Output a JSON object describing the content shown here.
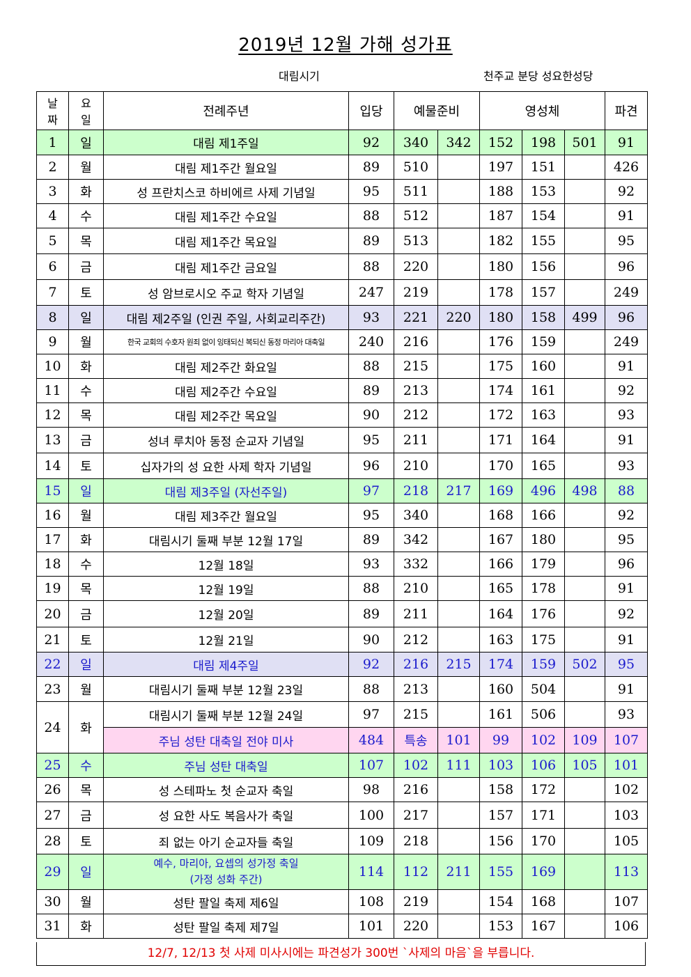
{
  "document": {
    "title": "2019년 12월 가해 성가표",
    "season": "대림시기",
    "parish": "천주교 분당 성요한성당",
    "footer_note": "12/7, 12/13  첫 사제 미사시에는  파견성가 300번 `사제의 마음`을 부릅니다."
  },
  "header": {
    "day_l1": "날",
    "day_l2": "짜",
    "weekday_l1": "요",
    "weekday_l2": "일",
    "liturgy": "전례주년",
    "entrance": "입당",
    "offertory": "예물준비",
    "communion": "영성체",
    "recessional": "파견"
  },
  "colors": {
    "green": "#ccffcc",
    "lavender": "#e0e0f4",
    "pink": "#ffd6f0",
    "blue_text": "#1a1acc",
    "red_text": "#e00000"
  },
  "rows": [
    {
      "day": "1",
      "weekday": "일",
      "liturgy": "대림 제1주일",
      "entrance": "92",
      "offertory1": "340",
      "offertory2": "342",
      "communion1": "152",
      "communion2": "198",
      "communion3": "501",
      "recessional": "91"
    },
    {
      "day": "2",
      "weekday": "월",
      "liturgy": "대림 제1주간 월요일",
      "entrance": "89",
      "offertory1": "510",
      "offertory2": "",
      "communion1": "197",
      "communion2": "151",
      "communion3": "",
      "recessional": "426"
    },
    {
      "day": "3",
      "weekday": "화",
      "liturgy": "성 프란치스코 하비에르 사제 기념일",
      "entrance": "95",
      "offertory1": "511",
      "offertory2": "",
      "communion1": "188",
      "communion2": "153",
      "communion3": "",
      "recessional": "92"
    },
    {
      "day": "4",
      "weekday": "수",
      "liturgy": "대림 제1주간 수요일",
      "entrance": "88",
      "offertory1": "512",
      "offertory2": "",
      "communion1": "187",
      "communion2": "154",
      "communion3": "",
      "recessional": "91"
    },
    {
      "day": "5",
      "weekday": "목",
      "liturgy": "대림 제1주간 목요일",
      "entrance": "89",
      "offertory1": "513",
      "offertory2": "",
      "communion1": "182",
      "communion2": "155",
      "communion3": "",
      "recessional": "95"
    },
    {
      "day": "6",
      "weekday": "금",
      "liturgy": "대림 제1주간 금요일",
      "entrance": "88",
      "offertory1": "220",
      "offertory2": "",
      "communion1": "180",
      "communion2": "156",
      "communion3": "",
      "recessional": "96"
    },
    {
      "day": "7",
      "weekday": "토",
      "liturgy": "성 암브로시오 주교 학자 기념일",
      "entrance": "247",
      "offertory1": "219",
      "offertory2": "",
      "communion1": "178",
      "communion2": "157",
      "communion3": "",
      "recessional": "249"
    },
    {
      "day": "8",
      "weekday": "일",
      "liturgy": "대림 제2주일 (인권 주일, 사회교리주간)",
      "entrance": "93",
      "offertory1": "221",
      "offertory2": "220",
      "communion1": "180",
      "communion2": "158",
      "communion3": "499",
      "recessional": "96"
    },
    {
      "day": "9",
      "weekday": "월",
      "liturgy": "한국 교회의 수호자 원죄 없이 잉태되신 복되신 동정 마리아 대축일",
      "entrance": "240",
      "offertory1": "216",
      "offertory2": "",
      "communion1": "176",
      "communion2": "159",
      "communion3": "",
      "recessional": "249"
    },
    {
      "day": "10",
      "weekday": "화",
      "liturgy": "대림 제2주간 화요일",
      "entrance": "88",
      "offertory1": "215",
      "offertory2": "",
      "communion1": "175",
      "communion2": "160",
      "communion3": "",
      "recessional": "91"
    },
    {
      "day": "11",
      "weekday": "수",
      "liturgy": "대림 제2주간 수요일",
      "entrance": "89",
      "offertory1": "213",
      "offertory2": "",
      "communion1": "174",
      "communion2": "161",
      "communion3": "",
      "recessional": "92"
    },
    {
      "day": "12",
      "weekday": "목",
      "liturgy": "대림 제2주간 목요일",
      "entrance": "90",
      "offertory1": "212",
      "offertory2": "",
      "communion1": "172",
      "communion2": "163",
      "communion3": "",
      "recessional": "93"
    },
    {
      "day": "13",
      "weekday": "금",
      "liturgy": "성녀 루치아 동정 순교자 기념일",
      "entrance": "95",
      "offertory1": "211",
      "offertory2": "",
      "communion1": "171",
      "communion2": "164",
      "communion3": "",
      "recessional": "91"
    },
    {
      "day": "14",
      "weekday": "토",
      "liturgy": "십자가의 성 요한 사제 학자 기념일",
      "entrance": "96",
      "offertory1": "210",
      "offertory2": "",
      "communion1": "170",
      "communion2": "165",
      "communion3": "",
      "recessional": "93"
    },
    {
      "day": "15",
      "weekday": "일",
      "liturgy": "대림 제3주일 (자선주일)",
      "entrance": "97",
      "offertory1": "218",
      "offertory2": "217",
      "communion1": "169",
      "communion2": "496",
      "communion3": "498",
      "recessional": "88"
    },
    {
      "day": "16",
      "weekday": "월",
      "liturgy": "대림 제3주간 월요일",
      "entrance": "95",
      "offertory1": "340",
      "offertory2": "",
      "communion1": "168",
      "communion2": "166",
      "communion3": "",
      "recessional": "92"
    },
    {
      "day": "17",
      "weekday": "화",
      "liturgy": "대림시기 둘째 부분 12월 17일",
      "entrance": "89",
      "offertory1": "342",
      "offertory2": "",
      "communion1": "167",
      "communion2": "180",
      "communion3": "",
      "recessional": "95"
    },
    {
      "day": "18",
      "weekday": "수",
      "liturgy": "12월 18일",
      "entrance": "93",
      "offertory1": "332",
      "offertory2": "",
      "communion1": "166",
      "communion2": "179",
      "communion3": "",
      "recessional": "96"
    },
    {
      "day": "19",
      "weekday": "목",
      "liturgy": "12월 19일",
      "entrance": "88",
      "offertory1": "210",
      "offertory2": "",
      "communion1": "165",
      "communion2": "178",
      "communion3": "",
      "recessional": "91"
    },
    {
      "day": "20",
      "weekday": "금",
      "liturgy": "12월 20일",
      "entrance": "89",
      "offertory1": "211",
      "offertory2": "",
      "communion1": "164",
      "communion2": "176",
      "communion3": "",
      "recessional": "92"
    },
    {
      "day": "21",
      "weekday": "토",
      "liturgy": "12월 21일",
      "entrance": "90",
      "offertory1": "212",
      "offertory2": "",
      "communion1": "163",
      "communion2": "175",
      "communion3": "",
      "recessional": "91"
    },
    {
      "day": "22",
      "weekday": "일",
      "liturgy": "대림 제4주일",
      "entrance": "92",
      "offertory1": "216",
      "offertory2": "215",
      "communion1": "174",
      "communion2": "159",
      "communion3": "502",
      "recessional": "95"
    },
    {
      "day": "23",
      "weekday": "월",
      "liturgy": "대림시기 둘째 부분 12월 23일",
      "entrance": "88",
      "offertory1": "213",
      "offertory2": "",
      "communion1": "160",
      "communion2": "504",
      "communion3": "",
      "recessional": "91"
    },
    {
      "day": "24",
      "weekday": "화",
      "liturgy": "대림시기 둘째 부분 12월 24일",
      "entrance": "97",
      "offertory1": "215",
      "offertory2": "",
      "communion1": "161",
      "communion2": "506",
      "communion3": "",
      "recessional": "93"
    },
    {
      "day": "",
      "weekday": "",
      "liturgy": "주님 성탄 대축일 전야 미사",
      "entrance": "484",
      "offertory1": "특송",
      "offertory2": "101",
      "communion1": "99",
      "communion2": "102",
      "communion3": "109",
      "recessional": "107"
    },
    {
      "day": "25",
      "weekday": "수",
      "liturgy": "주님 성탄 대축일",
      "entrance": "107",
      "offertory1": "102",
      "offertory2": "111",
      "communion1": "103",
      "communion2": "106",
      "communion3": "105",
      "recessional": "101"
    },
    {
      "day": "26",
      "weekday": "목",
      "liturgy": "성 스테파노 첫 순교자 축일",
      "entrance": "98",
      "offertory1": "216",
      "offertory2": "",
      "communion1": "158",
      "communion2": "172",
      "communion3": "",
      "recessional": "102"
    },
    {
      "day": "27",
      "weekday": "금",
      "liturgy": "성 요한 사도 복음사가 축일",
      "entrance": "100",
      "offertory1": "217",
      "offertory2": "",
      "communion1": "157",
      "communion2": "171",
      "communion3": "",
      "recessional": "103"
    },
    {
      "day": "28",
      "weekday": "토",
      "liturgy": "죄 없는 아기 순교자들 축일",
      "entrance": "109",
      "offertory1": "218",
      "offertory2": "",
      "communion1": "156",
      "communion2": "170",
      "communion3": "",
      "recessional": "105"
    },
    {
      "day": "29",
      "weekday": "일",
      "liturgy": "예수, 마리아, 요셉의 성가정 축일",
      "liturgy2": "(가정 성화 주간)",
      "entrance": "114",
      "offertory1": "112",
      "offertory2": "211",
      "communion1": "155",
      "communion2": "169",
      "communion3": "",
      "recessional": "113"
    },
    {
      "day": "30",
      "weekday": "월",
      "liturgy": "성탄 팔일 축제 제6일",
      "entrance": "108",
      "offertory1": "219",
      "offertory2": "",
      "communion1": "154",
      "communion2": "168",
      "communion3": "",
      "recessional": "107"
    },
    {
      "day": "31",
      "weekday": "화",
      "liturgy": "성탄 팔일 축제 제7일",
      "entrance": "101",
      "offertory1": "220",
      "offertory2": "",
      "communion1": "153",
      "communion2": "167",
      "communion3": "",
      "recessional": "106"
    }
  ]
}
